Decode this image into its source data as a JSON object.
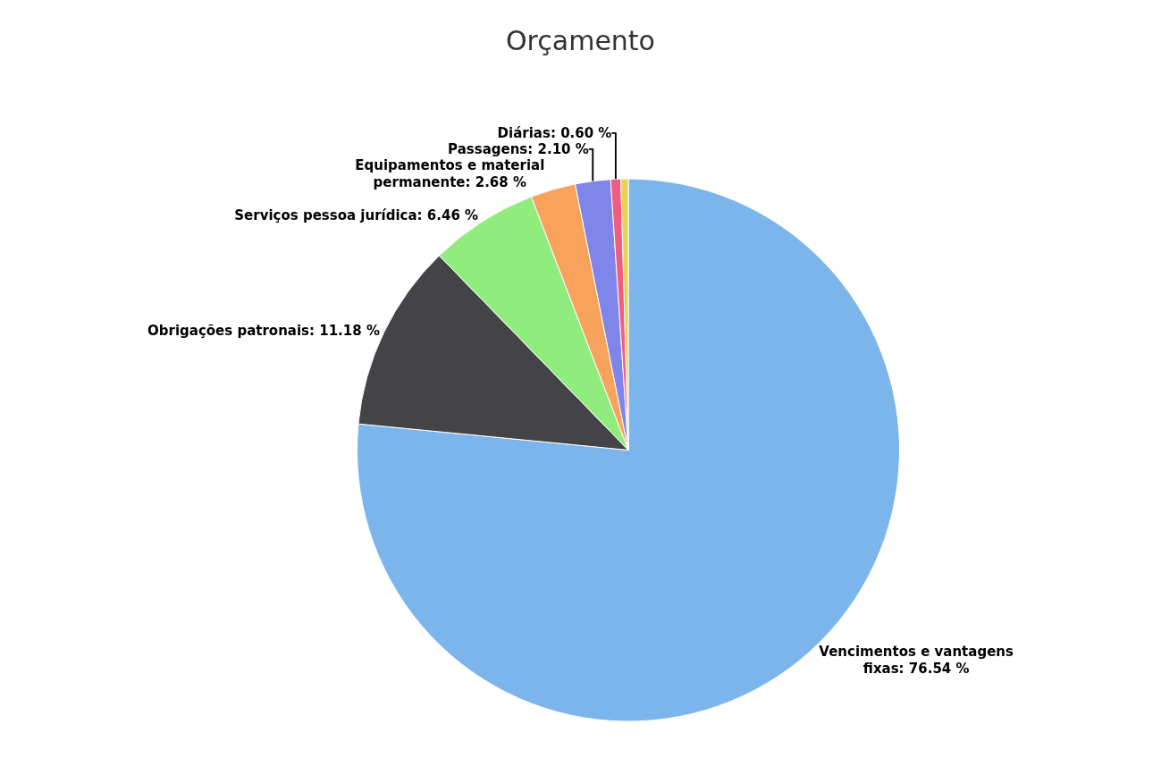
{
  "chart_data": {
    "type": "pie",
    "title": "Orçamento",
    "categories": [
      "Vencimentos e vantagens fixas",
      "Obrigações patronais",
      "Serviços pessoa jurídica",
      "Equipamentos e material permanente",
      "Passagens",
      "Diárias",
      null
    ],
    "values": [
      76.54,
      11.18,
      6.46,
      2.68,
      2.1,
      0.6,
      0.44
    ],
    "colors": [
      "#7cb5ec",
      "#434348",
      "#90ed7d",
      "#f7a35c",
      "#8085e9",
      "#f15c80",
      "#e4d354"
    ],
    "value_labels": [
      "76.54 %",
      "11.18 %",
      "6.46 %",
      "2.68 %",
      "2.10 %",
      "0.60 %",
      null
    ]
  }
}
